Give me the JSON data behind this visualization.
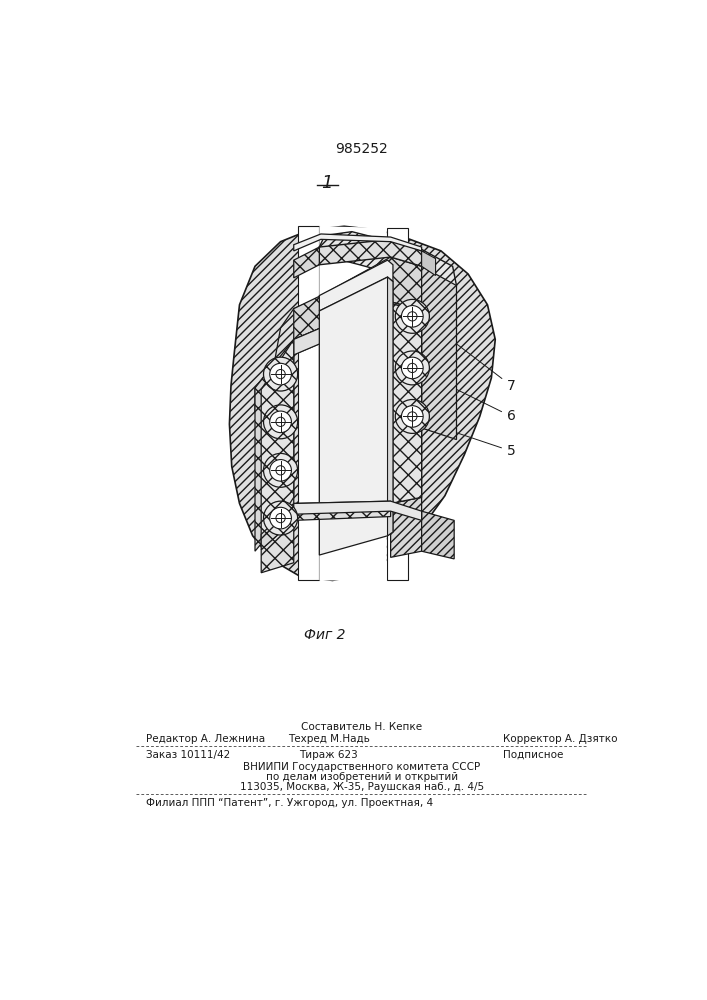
{
  "patent_number": "985252",
  "fig_label": "1",
  "fig_caption": "Фиг 2",
  "footer_line1_left": "Редактор А. Лежнина",
  "footer_line1_center": "Техред М.Надь",
  "footer_line1_center_top": "Составитель Н. Кепке",
  "footer_line1_right": "Корректор А. Дзятко",
  "footer_line2_col1": "Заказ 10111/42",
  "footer_line2_col2": "Тираж 623",
  "footer_line2_col3": "Подписное",
  "footer_line3": "ВНИИПИ Государственного комитета СССР",
  "footer_line4": "по делам изобретений и открытий",
  "footer_line5": "113035, Москва, Ж-35, Раушская наб., д. 4/5",
  "footer_line6": "Филиал ППП “Патент”, г. Ужгород, ул. Проектная, 4",
  "line_color": "#1a1a1a"
}
